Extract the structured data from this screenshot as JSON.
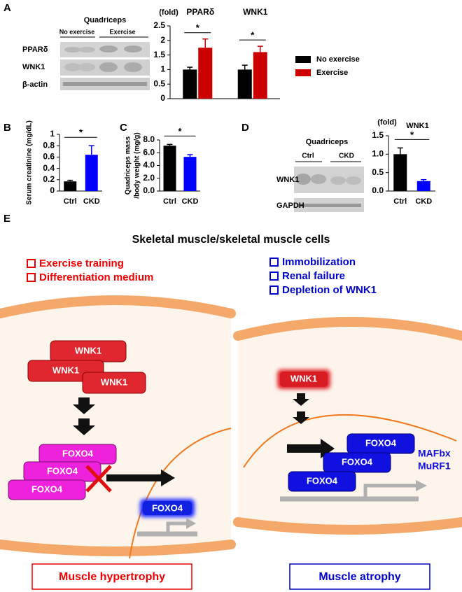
{
  "panel_labels": [
    "A",
    "B",
    "C",
    "D",
    "E"
  ],
  "blots": [
    {
      "title": "Quadriceps",
      "groups": [
        "No exercise",
        "Exercise"
      ],
      "rows": [
        "PPARδ",
        "WNK1",
        "β-actin"
      ]
    },
    {
      "title": "Quadriceps",
      "groups": [
        "Ctrl",
        "CKD"
      ],
      "rows": [
        "WNK1",
        "GAPDH"
      ]
    }
  ],
  "chart_data": [
    {
      "type": "bar",
      "y_label": "(fold)",
      "categories": [
        "PPARδ",
        "WNK1"
      ],
      "series": [
        {
          "name": "No exercise",
          "color": "#000000",
          "values": [
            1.0,
            1.0
          ],
          "errors": [
            0.08,
            0.15
          ]
        },
        {
          "name": "Exercise",
          "color": "#cc0000",
          "values": [
            1.75,
            1.6
          ],
          "errors": [
            0.3,
            0.2
          ]
        }
      ],
      "ylim": [
        0,
        2.5
      ],
      "yticks": [
        0,
        0.5,
        1,
        1.5,
        2,
        2.5
      ],
      "legend": "right",
      "significance": [
        "*",
        "*"
      ]
    },
    {
      "type": "bar",
      "y_label": "Serum creatinine (mg/dL)",
      "categories": [
        "Ctrl",
        "CKD"
      ],
      "series": [
        {
          "colors": [
            "#000000",
            "#0000ff"
          ],
          "values": [
            0.17,
            0.64
          ],
          "errors": [
            0.02,
            0.16
          ]
        }
      ],
      "ylim": [
        0,
        1
      ],
      "yticks": [
        0,
        0.2,
        0.4,
        0.6,
        0.8,
        1
      ],
      "significance": [
        "*"
      ]
    },
    {
      "type": "bar",
      "y_label": [
        "Quadriceps mass",
        "/body weight (mg/g)"
      ],
      "categories": [
        "Ctrl",
        "CKD"
      ],
      "series": [
        {
          "colors": [
            "#000000",
            "#0000ff"
          ],
          "values": [
            7.1,
            5.35
          ],
          "errors": [
            0.2,
            0.35
          ]
        }
      ],
      "ylim": [
        0,
        8
      ],
      "yticks": [
        {
          "value": 0,
          "label": "0.0"
        },
        {
          "value": 2,
          "label": "2.0"
        },
        {
          "value": 4,
          "label": "4.0"
        },
        {
          "value": 6,
          "label": "6.0"
        },
        {
          "value": 8,
          "label": "8.0"
        }
      ],
      "significance": [
        "*"
      ]
    },
    {
      "type": "bar",
      "title": "WNK1",
      "y_label": "(fold)",
      "categories": [
        "Ctrl",
        "CKD"
      ],
      "series": [
        {
          "colors": [
            "#000000",
            "#0000ff"
          ],
          "values": [
            1.0,
            0.27
          ],
          "errors": [
            0.17,
            0.04
          ]
        }
      ],
      "ylim": [
        0,
        1.5
      ],
      "yticks": [
        {
          "value": 0,
          "label": "0.0"
        },
        {
          "value": 0.5,
          "label": "0.5"
        },
        {
          "value": 1,
          "label": "1.0"
        },
        {
          "value": 1.5,
          "label": "1.5"
        }
      ],
      "significance": [
        "*"
      ]
    }
  ],
  "diagram": {
    "title": "Skeletal muscle/skeletal muscle cells",
    "left_conditions": [
      "Exercise training",
      "Differentiation medium"
    ],
    "right_conditions": [
      "Immobilization",
      "Renal failure",
      "Depletion of WNK1"
    ],
    "left_wnk1": [
      "WNK1",
      "WNK1",
      "WNK1"
    ],
    "left_foxo4": [
      "FOXO4",
      "FOXO4",
      "FOXO4"
    ],
    "left_nuclear_foxo4": "FOXO4",
    "right_wnk1": "WNK1",
    "right_foxo4": [
      "FOXO4",
      "FOXO4",
      "FOXO4"
    ],
    "target_genes": [
      "MAFbx",
      "MuRF1"
    ],
    "outcomes": [
      "Muscle hypertrophy",
      "Muscle atrophy"
    ]
  }
}
